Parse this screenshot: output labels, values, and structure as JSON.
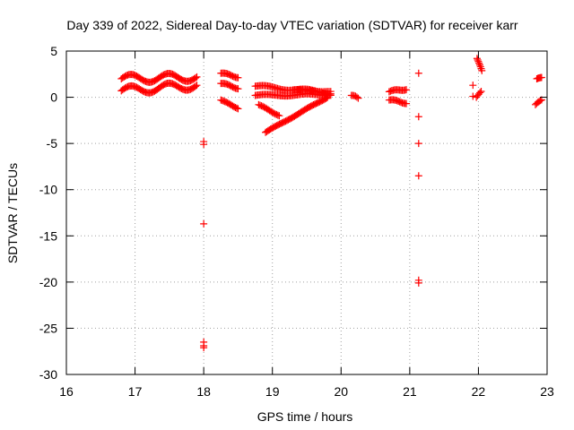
{
  "chart_data": {
    "type": "scatter",
    "title": "Day 339 of 2022, Sidereal Day-to-day VTEC variation (SDTVAR) for receiver karr",
    "xlabel": "GPS time / hours",
    "ylabel": "SDTVAR / TECUs",
    "xlim": [
      16,
      23
    ],
    "ylim": [
      -30,
      5
    ],
    "xticks": [
      16,
      17,
      18,
      19,
      20,
      21,
      22,
      23
    ],
    "yticks": [
      -30,
      -25,
      -20,
      -15,
      -10,
      -5,
      0,
      5
    ],
    "grid": true,
    "marker": "+",
    "color": "#ff0000",
    "series": [
      {
        "name": "SDTVAR",
        "segments": [
          {
            "x0": 16.8,
            "x1": 17.9,
            "y0": 2.0,
            "y1": 2.2,
            "amp": 0.45,
            "period": 0.55,
            "n": 60
          },
          {
            "x0": 16.8,
            "x1": 17.9,
            "y0": 0.7,
            "y1": 1.3,
            "amp": 0.45,
            "period": 0.55,
            "n": 60
          },
          {
            "x0": 18.25,
            "x1": 18.5,
            "y0": 2.6,
            "y1": 2.2,
            "amp": 0.1,
            "period": 0.3,
            "n": 14
          },
          {
            "x0": 18.25,
            "x1": 18.5,
            "y0": 1.5,
            "y1": 1.0,
            "amp": 0.1,
            "period": 0.3,
            "n": 14
          },
          {
            "x0": 18.25,
            "x1": 18.5,
            "y0": -0.3,
            "y1": -1.2,
            "amp": 0.05,
            "period": 0.3,
            "n": 14
          },
          {
            "x0": 18.75,
            "x1": 19.85,
            "y0": 1.2,
            "y1": 0.5,
            "amp": 0.15,
            "period": 0.6,
            "n": 55
          },
          {
            "x0": 18.75,
            "x1": 19.85,
            "y0": 0.2,
            "y1": 0.3,
            "amp": 0.1,
            "period": 0.6,
            "n": 55
          },
          {
            "x0": 18.8,
            "x1": 19.1,
            "y0": -0.8,
            "y1": -2.0,
            "amp": 0.05,
            "period": 0.3,
            "n": 16
          },
          {
            "x0": 18.9,
            "x1": 19.8,
            "y0": -3.8,
            "y1": 0.0,
            "amp": 0.05,
            "period": 0.5,
            "n": 50
          },
          {
            "x0": 19.3,
            "x1": 19.85,
            "y0": 0.8,
            "y1": 0.6,
            "amp": 0.05,
            "period": 0.5,
            "n": 25
          },
          {
            "x0": 20.15,
            "x1": 20.25,
            "y0": 0.2,
            "y1": -0.1,
            "amp": 0.1,
            "period": 0.2,
            "n": 6
          },
          {
            "x0": 20.7,
            "x1": 20.95,
            "y0": 0.6,
            "y1": 0.9,
            "amp": 0.1,
            "period": 0.3,
            "n": 14
          },
          {
            "x0": 20.7,
            "x1": 20.95,
            "y0": -0.3,
            "y1": -0.6,
            "amp": 0.1,
            "period": 0.3,
            "n": 14
          },
          {
            "x0": 21.98,
            "x1": 22.05,
            "y0": 4.2,
            "y1": 2.8,
            "amp": 0.1,
            "period": 0.2,
            "n": 8
          },
          {
            "x0": 21.97,
            "x1": 22.04,
            "y0": 0.0,
            "y1": 0.6,
            "amp": 0.05,
            "period": 0.2,
            "n": 5
          },
          {
            "x0": 22.85,
            "x1": 22.92,
            "y0": 2.0,
            "y1": 2.1,
            "amp": 0.05,
            "period": 0.2,
            "n": 6
          },
          {
            "x0": 22.83,
            "x1": 22.92,
            "y0": -0.8,
            "y1": -0.3,
            "amp": 0.05,
            "period": 0.2,
            "n": 6
          }
        ],
        "points": [
          [
            18.0,
            -4.8
          ],
          [
            18.0,
            -5.1
          ],
          [
            18.0,
            -13.7
          ],
          [
            18.0,
            -26.5
          ],
          [
            18.0,
            -26.9
          ],
          [
            18.0,
            -27.1
          ],
          [
            21.13,
            2.6
          ],
          [
            21.13,
            -2.1
          ],
          [
            21.13,
            -5.0
          ],
          [
            21.13,
            -8.5
          ],
          [
            21.13,
            -19.8
          ],
          [
            21.13,
            -20.1
          ],
          [
            21.92,
            1.3
          ],
          [
            21.92,
            0.1
          ]
        ]
      }
    ]
  }
}
